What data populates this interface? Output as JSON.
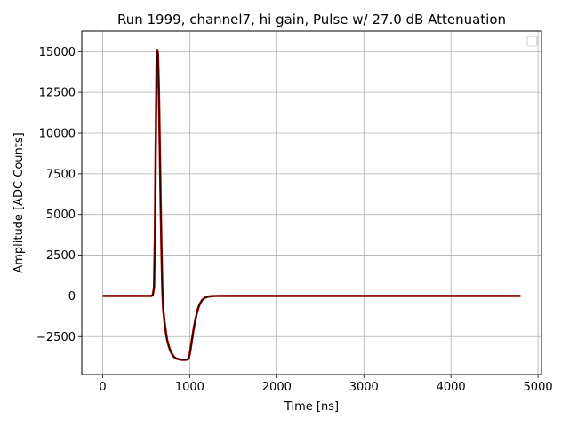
{
  "chart_data": {
    "type": "line",
    "title": "Run 1999, channel7, hi gain, Pulse w/ 27.0 dB Attenuation",
    "xlabel": "Time [ns]",
    "ylabel": "Amplitude [ADC Counts]",
    "xlim": [
      -240,
      5040
    ],
    "ylim": [
      -4830,
      16270
    ],
    "x_ticks": [
      0,
      1000,
      2000,
      3000,
      4000,
      5000
    ],
    "x_tick_labels": [
      "0",
      "1000",
      "2000",
      "3000",
      "4000",
      "5000"
    ],
    "y_ticks": [
      -2500,
      0,
      2500,
      5000,
      7500,
      10000,
      12500,
      15000
    ],
    "y_tick_labels": [
      "−2500",
      "0",
      "2500",
      "5000",
      "7500",
      "10000",
      "12500",
      "15000"
    ],
    "grid": true,
    "legend": "top-right",
    "legend_entries": [],
    "series": [
      {
        "color": "#8b0000",
        "x": [
          0,
          560,
          575,
          590,
          600,
          610,
          620,
          628,
          635,
          645,
          655,
          665,
          675,
          685,
          695,
          710,
          725,
          740,
          760,
          780,
          800,
          820,
          840,
          860,
          880,
          900,
          920,
          940,
          960,
          980,
          990,
          995,
          1000,
          1010,
          1020,
          1040,
          1060,
          1080,
          1100,
          1120,
          1140,
          1160,
          1180,
          1200,
          1230,
          1260,
          1300,
          1400,
          2000,
          3000,
          4000,
          4800
        ],
        "y": [
          0,
          0,
          50,
          500,
          3500,
          9500,
          14300,
          15100,
          14800,
          12800,
          9500,
          6000,
          3000,
          500,
          -800,
          -1600,
          -2200,
          -2700,
          -3100,
          -3400,
          -3600,
          -3750,
          -3830,
          -3870,
          -3900,
          -3920,
          -3930,
          -3930,
          -3920,
          -3900,
          -3800,
          -3700,
          -3550,
          -3250,
          -2900,
          -2200,
          -1600,
          -1100,
          -700,
          -450,
          -280,
          -170,
          -100,
          -60,
          -30,
          -15,
          -5,
          0,
          0,
          0,
          0,
          0
        ]
      }
    ]
  }
}
